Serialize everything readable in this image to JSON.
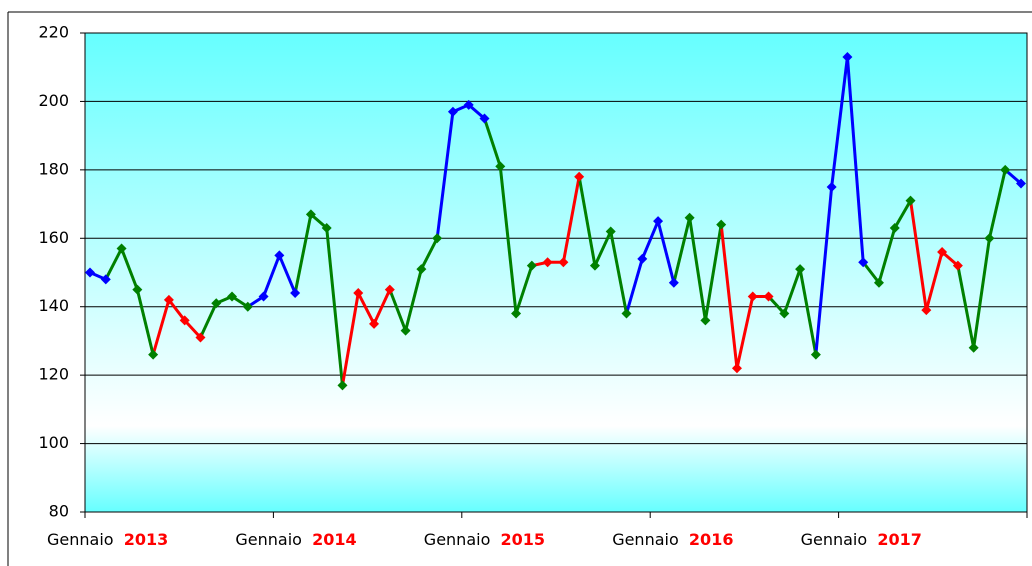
{
  "chart_data": {
    "type": "line",
    "values": [
      150,
      148,
      157,
      145,
      126,
      142,
      136,
      131,
      141,
      143,
      140,
      143,
      155,
      144,
      167,
      163,
      117,
      144,
      135,
      145,
      133,
      151,
      160,
      197,
      199,
      195,
      181,
      138,
      152,
      153,
      153,
      178,
      152,
      162,
      138,
      154,
      165,
      147,
      166,
      136,
      164,
      122,
      143,
      143,
      138,
      151,
      126,
      175,
      213,
      153,
      147,
      163,
      171,
      139,
      156,
      152,
      128,
      160,
      180,
      176
    ],
    "month_colors": [
      "#0000ff",
      "#0000ff",
      "#008000",
      "#008000",
      "#008000",
      "#ff0000",
      "#ff0000",
      "#ff0000",
      "#008000",
      "#008000",
      "#008000",
      "#0000ff"
    ],
    "x_labels": [
      {
        "month": "Gennaio",
        "year": "2013"
      },
      {
        "month": "Gennaio",
        "year": "2014"
      },
      {
        "month": "Gennaio",
        "year": "2015"
      },
      {
        "month": "Gennaio",
        "year": "2016"
      },
      {
        "month": "Gennaio",
        "year": "2017"
      }
    ],
    "ylim": [
      80,
      220
    ],
    "yticks": [
      80,
      100,
      120,
      140,
      160,
      180,
      200,
      220
    ],
    "grid": true
  }
}
